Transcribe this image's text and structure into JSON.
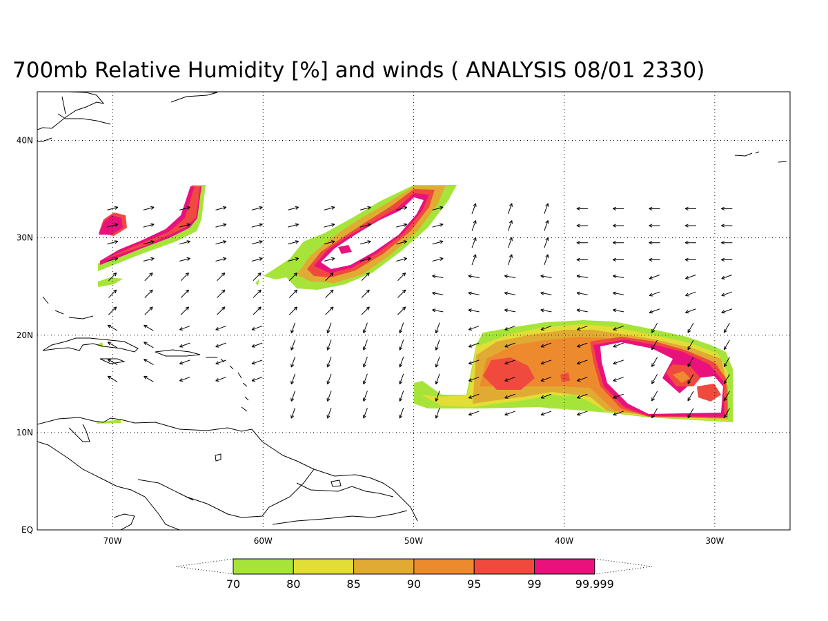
{
  "title": "700mb Relative Humidity [%] and winds ( ANALYSIS 08/01 2330)",
  "map": {
    "lon_range": [
      -75,
      -25
    ],
    "lat_range": [
      0,
      45
    ],
    "lat_ticks": [
      {
        "value": 40,
        "label": "40N"
      },
      {
        "value": 30,
        "label": "30N"
      },
      {
        "value": 20,
        "label": "20N"
      },
      {
        "value": 10,
        "label": "10N"
      },
      {
        "value": 0,
        "label": "EQ"
      }
    ],
    "lon_ticks": [
      {
        "value": -70,
        "label": "70W"
      },
      {
        "value": -60,
        "label": "60W"
      },
      {
        "value": -50,
        "label": "50W"
      },
      {
        "value": -40,
        "label": "40W"
      },
      {
        "value": -30,
        "label": "30W"
      }
    ],
    "grid": "dotted"
  },
  "colorbar": {
    "levels": [
      "70",
      "80",
      "85",
      "90",
      "95",
      "99",
      "99.999"
    ],
    "colors": [
      "#a6e43a",
      "#e3dd38",
      "#e1ab33",
      "#ee8a2e",
      "#f04a3f",
      "#e9127d"
    ]
  }
}
